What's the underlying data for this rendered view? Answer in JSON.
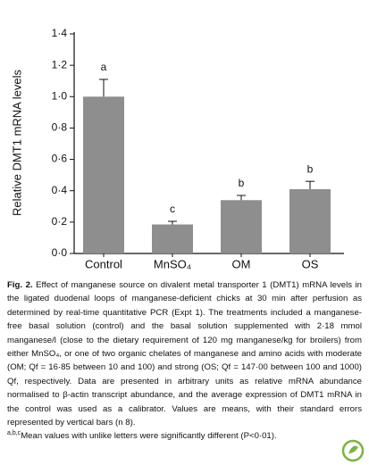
{
  "chart_data": {
    "type": "bar",
    "y_label": "Relative DMT1 mRNA levels",
    "categories": [
      "Control",
      "MnSO₄",
      "OM",
      "OS"
    ],
    "values": [
      1.0,
      0.185,
      0.34,
      0.41
    ],
    "errors": [
      0.11,
      0.02,
      0.03,
      0.05
    ],
    "letters": [
      "a",
      "c",
      "b",
      "b"
    ],
    "color": "#8e8e8e",
    "ylim": [
      0,
      1.4
    ],
    "yticks": [
      {
        "value": 0,
        "label": "0·0"
      },
      {
        "value": 0.2,
        "label": "0·2"
      },
      {
        "value": 0.4,
        "label": "0·4"
      },
      {
        "value": 0.6,
        "label": "0·6"
      },
      {
        "value": 0.8,
        "label": "0·8"
      },
      {
        "value": 1.0,
        "label": "1·0"
      },
      {
        "value": 1.2,
        "label": "1·2"
      },
      {
        "value": 1.4,
        "label": "1·4"
      }
    ]
  },
  "caption": {
    "label": "Fig. 2.",
    "text": "Effect of manganese source on divalent metal transporter 1 (DMT1) mRNA levels in the ligated duodenal loops of manganese-deficient chicks at 30 min after perfusion as determined by real-time quantitative PCR (Expt 1). The treatments included a manganese-free basal solution (control) and the basal solution supplemented with 2·18 mmol manganese/l (close to the dietary requirement of 120 mg manganese/kg for broilers) from either MnSO₄, or one of two organic chelates of manganese and amino acids with moderate (OM; Qf = 16·85 between 10 and 100) and strong (OS; Qf = 147·00 between 100 and 1000) Qf, respectively. Data are presented in arbitrary units as relative mRNA abundance normalised to β-actin transcript abundance, and the average expression of DMT1 mRNA in the control was used as a calibrator. Values are means, with their standard errors represented by vertical bars (n 8).",
    "footnote_marker": "a,b,c",
    "footnote": "Mean values with unlike letters were significantly different (P<0·01)."
  }
}
